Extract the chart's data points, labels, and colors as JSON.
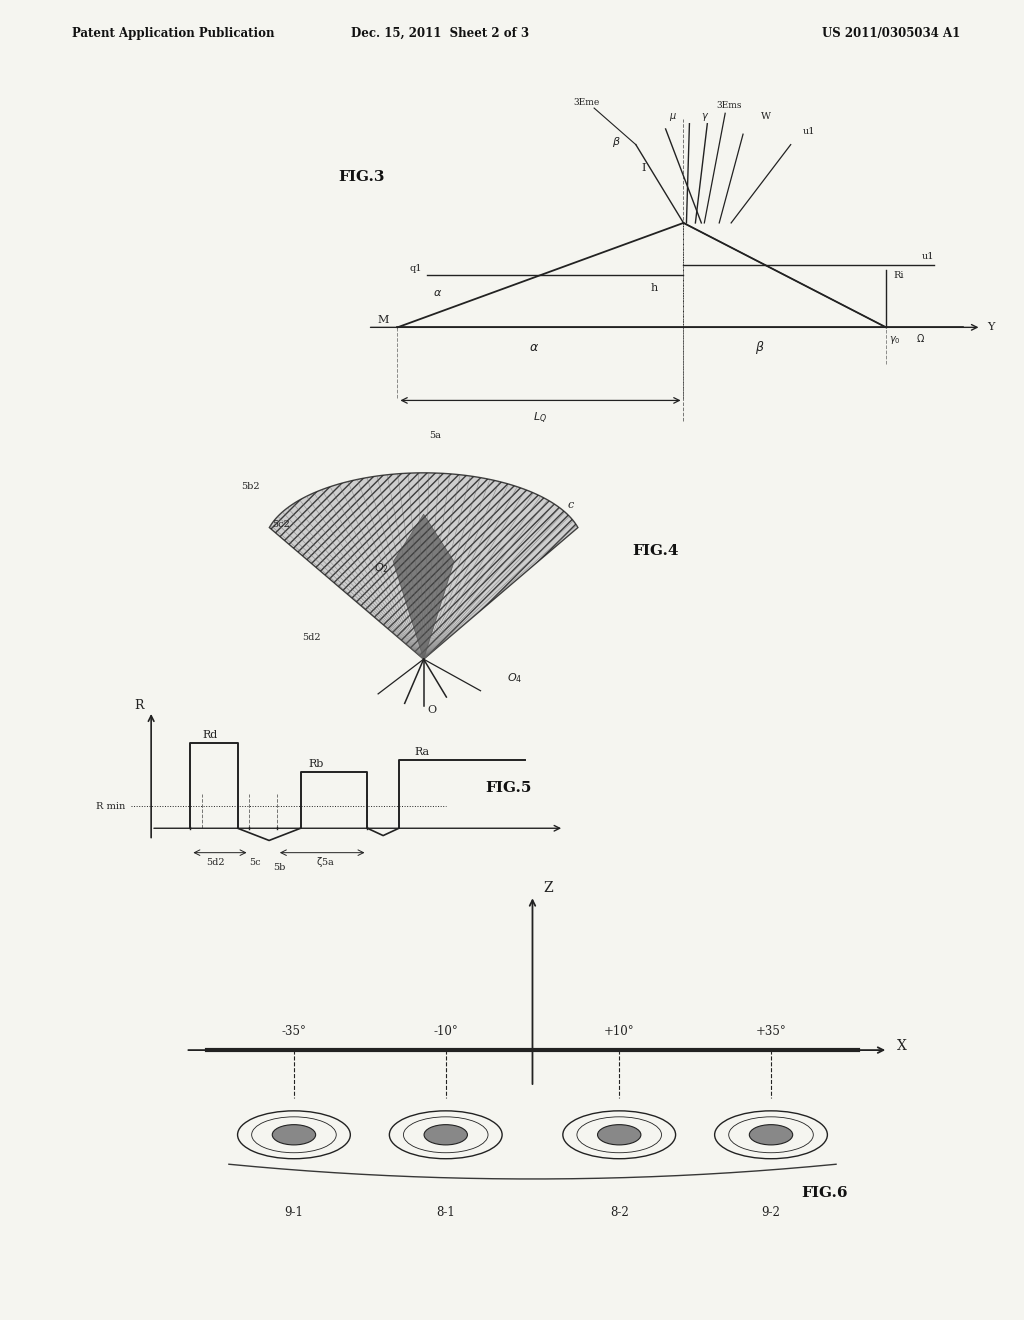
{
  "bg_color": "#f5f5f0",
  "header_left": "Patent Application Publication",
  "header_center": "Dec. 15, 2011  Sheet 2 of 3",
  "header_right": "US 2011/0305034 A1",
  "fig3_label": "FIG.3",
  "fig4_label": "FIG.4",
  "fig5_label": "FIG.5",
  "fig6_label": "FIG.6",
  "text_color": "#111111",
  "line_color": "#222222"
}
